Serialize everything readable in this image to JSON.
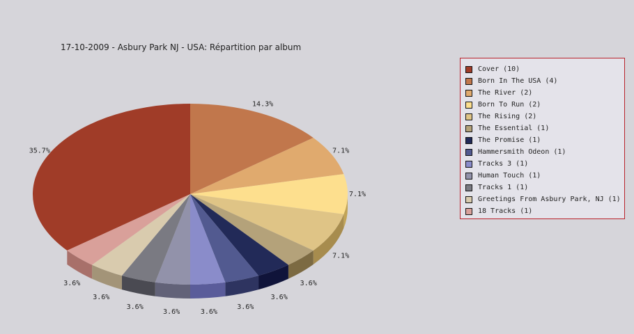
{
  "chart_data": {
    "type": "pie",
    "title": "17-10-2009 - Asbury Park NJ - USA:  Répartition par album",
    "slices": [
      {
        "label": "Cover (10)",
        "value": 10,
        "percent_label": "35.7%",
        "color": "#a03c28",
        "side": "#7a0c06"
      },
      {
        "label": "Born In The USA (4)",
        "value": 4,
        "percent_label": "14.3%",
        "color": "#c1774c",
        "side": "#8a3e14"
      },
      {
        "label": "The River (2)",
        "value": 2,
        "percent_label": "7.1%",
        "color": "#e0aa6e",
        "side": "#a87836"
      },
      {
        "label": "Born To Run (2)",
        "value": 2,
        "percent_label": "7.1%",
        "color": "#fddf8e",
        "side": "#c2a456"
      },
      {
        "label": "The Rising (2)",
        "value": 2,
        "percent_label": "7.1%",
        "color": "#dfc486",
        "side": "#a78c4e"
      },
      {
        "label": "The Essential (1)",
        "value": 1,
        "percent_label": "3.6%",
        "color": "#b4a27a",
        "side": "#7c6a42"
      },
      {
        "label": "The Promise (1)",
        "value": 1,
        "percent_label": "3.6%",
        "color": "#222a58",
        "side": "#10143a"
      },
      {
        "label": "Hammersmith Odeon  (1)",
        "value": 1,
        "percent_label": "3.6%",
        "color": "#525a90",
        "side": "#2e3460"
      },
      {
        "label": "Tracks 3 (1)",
        "value": 1,
        "percent_label": "3.6%",
        "color": "#8a8cca",
        "side": "#5a5c9a"
      },
      {
        "label": "Human Touch (1)",
        "value": 1,
        "percent_label": "3.6%",
        "color": "#9292aa",
        "side": "#626278"
      },
      {
        "label": "Tracks 1 (1)",
        "value": 1,
        "percent_label": "3.6%",
        "color": "#7a7a82",
        "side": "#4a4a52"
      },
      {
        "label": "Greetings From Asbury Park, NJ (1)",
        "value": 1,
        "percent_label": "3.6%",
        "color": "#d9cbae",
        "side": "#a39478"
      },
      {
        "label": "18 Tracks (1)",
        "value": 1,
        "percent_label": "3.6%",
        "color": "#d9a09a",
        "side": "#a8706a"
      }
    ],
    "legend_position": "right",
    "legend_border_color": "#b8222a",
    "background": "#d6d5da"
  }
}
